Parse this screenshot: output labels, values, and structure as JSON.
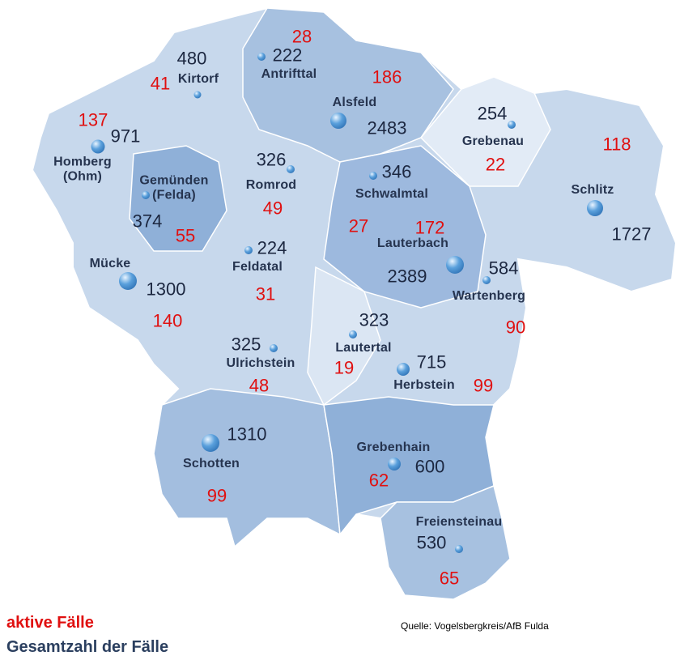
{
  "legend": {
    "active": "aktive Fälle",
    "total": "Gesamtzahl der Fälle"
  },
  "source": "Quelle: Vogelsbergkreis/AfB Fulda",
  "municipalities": [
    {
      "name": "Antrifttal",
      "total": 222,
      "active": 28
    },
    {
      "name": "Kirtorf",
      "total": 480,
      "active": 41
    },
    {
      "name": "Alsfeld",
      "total": 2483,
      "active": 186
    },
    {
      "name": "Homberg\n(Ohm)",
      "total": 971,
      "active": 137
    },
    {
      "name": "Grebenau",
      "total": 254,
      "active": 22
    },
    {
      "name": "Schlitz",
      "total": 1727,
      "active": 118
    },
    {
      "name": "Gemünden\n(Felda)",
      "total": 374,
      "active": 55
    },
    {
      "name": "Romrod",
      "total": 326,
      "active": 49
    },
    {
      "name": "Schwalmtal",
      "total": 346,
      "active": 27
    },
    {
      "name": "Lauterbach",
      "total": 2389,
      "active": 172
    },
    {
      "name": "Feldatal",
      "total": 224,
      "active": 31
    },
    {
      "name": "Mücke",
      "total": 1300,
      "active": 140
    },
    {
      "name": "Wartenberg",
      "total": 584,
      "active": 90
    },
    {
      "name": "Lautertal",
      "total": 323,
      "active": 19
    },
    {
      "name": "Ulrichstein",
      "total": 325,
      "active": 48
    },
    {
      "name": "Herbstein",
      "total": 715,
      "active": 99
    },
    {
      "name": "Schotten",
      "total": 1310,
      "active": 99
    },
    {
      "name": "Grebenhain",
      "total": 600,
      "active": 62
    },
    {
      "name": "Freiensteinau",
      "total": 530,
      "active": 65
    }
  ]
}
